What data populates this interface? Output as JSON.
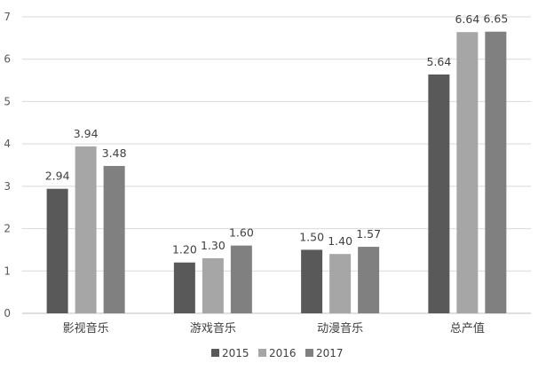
{
  "chart_data": {
    "type": "bar",
    "categories": [
      "影视音乐",
      "游戏音乐",
      "动漫音乐",
      "总产值"
    ],
    "series": [
      {
        "name": "2015",
        "values": [
          2.94,
          1.2,
          1.5,
          5.64
        ],
        "labels": [
          "2.94",
          "1.20",
          "1.50",
          "5.64"
        ],
        "color": "#595959"
      },
      {
        "name": "2016",
        "values": [
          3.94,
          1.3,
          1.4,
          6.64
        ],
        "labels": [
          "3.94",
          "1.30",
          "1.40",
          "6.64"
        ],
        "color": "#a6a6a6"
      },
      {
        "name": "2017",
        "values": [
          3.48,
          1.6,
          1.57,
          6.65
        ],
        "labels": [
          "3.48",
          "1.60",
          "1.57",
          "6.65"
        ],
        "color": "#808080"
      }
    ],
    "yticks": [
      "0",
      "1",
      "2",
      "3",
      "4",
      "5",
      "6",
      "7"
    ],
    "ylim": [
      0,
      7
    ],
    "grid": true,
    "legend_position": "bottom",
    "title": "",
    "xlabel": "",
    "ylabel": ""
  }
}
